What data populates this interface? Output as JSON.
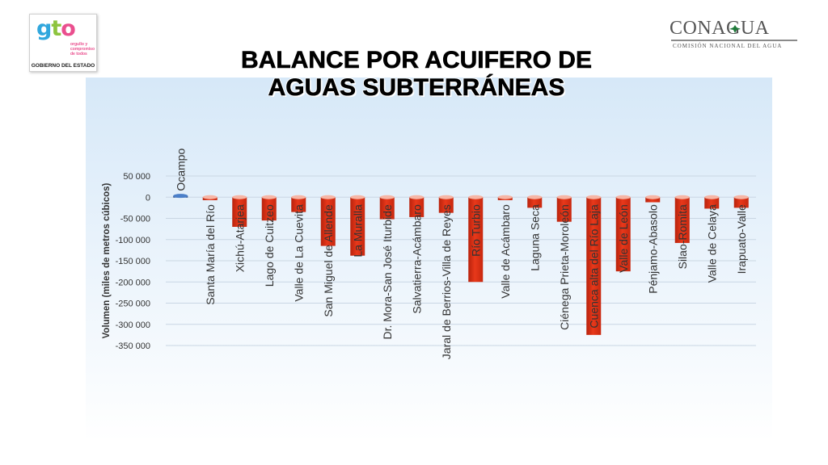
{
  "header": {
    "left_logo": {
      "mark": "gto",
      "tagline": "orgullo y compromiso de todos",
      "caption": "GOBIERNO DEL ESTADO"
    },
    "right_logo": {
      "name": "CONAGUA",
      "subtitle": "COMISIÓN NACIONAL DEL AGUA"
    }
  },
  "title_line1": "BALANCE POR ACUIFERO DE",
  "title_line2": "AGUAS SUBTERRÁNEAS",
  "colors": {
    "bar_negative": "#e8381a",
    "bar_positive": "#1f4e9a",
    "panel_top": "#d6e8f8"
  },
  "chart_data": {
    "type": "bar",
    "title": "BALANCE POR ACUIFERO DE AGUAS SUBTERRÁNEAS",
    "ylabel": "Volumen (miles de metros cúbicos)",
    "xlabel": "",
    "ylim": [
      -350000,
      50000
    ],
    "yticks": [
      50000,
      0,
      -50000,
      -100000,
      -150000,
      -200000,
      -250000,
      -300000,
      -350000
    ],
    "ytick_labels": [
      "50 000",
      "0",
      "-50 000",
      "-100 000",
      "-150 000",
      "-200 000",
      "-250 000",
      "-300 000",
      "-350 000"
    ],
    "grid": true,
    "categories": [
      "Ocampo",
      "Santa María del Río",
      "Xichú-Atarjea",
      "Lago de Cuitzeo",
      "Valle de La Cuevita",
      "San Miguel de Allende",
      "La Muralla",
      "Dr. Mora-San José Iturbide",
      "Salvatierra-Acámbaro",
      "Jaral de Berrios-Villa de Reyes",
      "Río Turbio",
      "Valle de Acámbaro",
      "Laguna Seca",
      "Ciénega Prieta-Moroleón",
      "Cuenca alta del Río Laja",
      "Valle de León",
      "Pénjamo-Abasolo",
      "Silao-Romita",
      "Valle de Celaya",
      "Irapuato-Valle"
    ],
    "values": [
      3000,
      -7000,
      -70000,
      -55000,
      -35000,
      -115000,
      -138000,
      -52000,
      -47000,
      -37000,
      -200000,
      -7000,
      -25000,
      -58000,
      -325000,
      -175000,
      -12000,
      -108000,
      -27000,
      -25000
    ]
  }
}
